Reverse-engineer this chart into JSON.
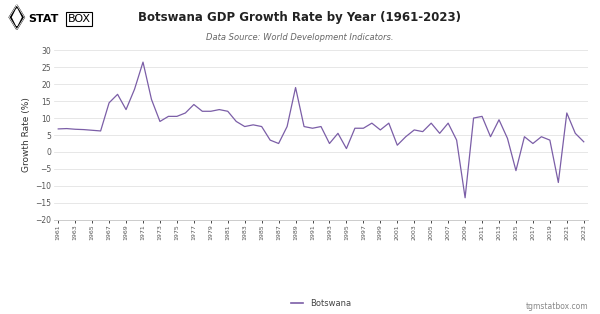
{
  "title": "Botswana GDP Growth Rate by Year (1961-2023)",
  "subtitle": "Data Source: World Development Indicators.",
  "ylabel": "Growth Rate (%)",
  "legend_label": "Botswana",
  "footer_text": "tgmstatbox.com",
  "line_color": "#7b5ea7",
  "background_color": "#ffffff",
  "plot_bg_color": "#ffffff",
  "grid_color": "#dddddd",
  "ylim": [
    -20,
    30
  ],
  "yticks": [
    -20,
    -15,
    -10,
    -5,
    0,
    5,
    10,
    15,
    20,
    25,
    30
  ],
  "years": [
    1961,
    1962,
    1963,
    1964,
    1965,
    1966,
    1967,
    1968,
    1969,
    1970,
    1971,
    1972,
    1973,
    1974,
    1975,
    1976,
    1977,
    1978,
    1979,
    1980,
    1981,
    1982,
    1983,
    1984,
    1985,
    1986,
    1987,
    1988,
    1989,
    1990,
    1991,
    1992,
    1993,
    1994,
    1995,
    1996,
    1997,
    1998,
    1999,
    2000,
    2001,
    2002,
    2003,
    2004,
    2005,
    2006,
    2007,
    2008,
    2009,
    2010,
    2011,
    2012,
    2013,
    2014,
    2015,
    2016,
    2017,
    2018,
    2019,
    2020,
    2021,
    2022,
    2023
  ],
  "values": [
    6.8,
    6.9,
    6.7,
    6.6,
    6.4,
    6.2,
    14.5,
    17.0,
    12.5,
    18.5,
    26.5,
    15.5,
    9.0,
    10.5,
    10.5,
    11.5,
    14.0,
    12.0,
    12.0,
    12.5,
    12.0,
    9.0,
    7.5,
    8.0,
    7.5,
    3.5,
    2.5,
    7.5,
    19.0,
    7.5,
    7.0,
    7.5,
    2.5,
    5.5,
    1.0,
    7.0,
    7.0,
    8.5,
    6.5,
    8.5,
    2.0,
    4.5,
    6.5,
    6.0,
    8.5,
    5.5,
    8.5,
    3.5,
    -13.5,
    10.0,
    10.5,
    4.5,
    9.5,
    4.0,
    -5.5,
    4.5,
    2.5,
    4.5,
    3.5,
    -9.0,
    11.5,
    5.5,
    3.0
  ]
}
